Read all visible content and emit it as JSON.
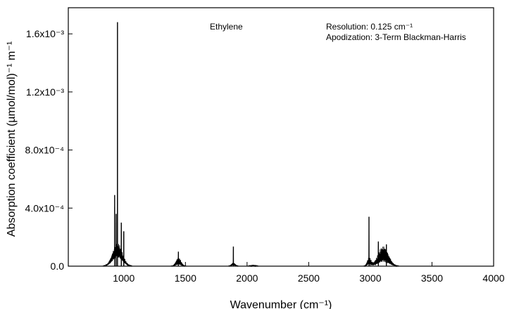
{
  "chart_data": {
    "type": "line",
    "title": "",
    "xlabel": "Wavenumber (cm⁻¹)",
    "ylabel": "Absorption coefficient (µmol/mol)⁻¹ m⁻¹",
    "xlim": [
      550,
      4000
    ],
    "ylim": [
      0,
      0.00178
    ],
    "grid": false,
    "legend": "none",
    "x_ticks": [
      1000,
      1500,
      2000,
      2500,
      3000,
      3500,
      4000
    ],
    "x_tick_labels": [
      "1000",
      "1500",
      "2000",
      "2500",
      "3000",
      "3500",
      "4000"
    ],
    "y_ticks": [
      0,
      0.0004,
      0.0008,
      0.0012,
      0.0016
    ],
    "y_tick_labels": [
      "0.0",
      "4.0x10⁻⁴",
      "8.0x10⁻⁴",
      "1.2x10⁻³",
      "1.6x10⁻³"
    ],
    "annotations": [
      {
        "text": "Ethylene"
      },
      {
        "text": "Resolution:   0.125 cm⁻¹"
      },
      {
        "text": "Apodization: 3-Term Blackman-Harris"
      }
    ],
    "series": [
      {
        "color": "#000000",
        "bands": [
          {
            "center": 949,
            "width": 75,
            "envelope": 0.00016,
            "floor": 6e-05
          },
          {
            "center": 1444,
            "width": 40,
            "envelope": 6e-05,
            "floor": 1e-05
          },
          {
            "center": 1889,
            "width": 30,
            "envelope": 2.5e-05,
            "floor": 5e-06
          },
          {
            "center": 2050,
            "width": 40,
            "envelope": 8e-06,
            "floor": 1e-06
          },
          {
            "center": 2990,
            "width": 30,
            "envelope": 6e-05,
            "floor": 1e-05
          },
          {
            "center": 3105,
            "width": 80,
            "envelope": 0.00014,
            "floor": 3e-05
          }
        ],
        "peaks": [
          {
            "x": 949,
            "y": 0.00168
          },
          {
            "x": 926,
            "y": 0.00049
          },
          {
            "x": 938,
            "y": 0.00036
          },
          {
            "x": 980,
            "y": 0.0003
          },
          {
            "x": 1000,
            "y": 0.00024
          },
          {
            "x": 1443,
            "y": 0.0001
          },
          {
            "x": 1889,
            "y": 0.000135
          },
          {
            "x": 2989,
            "y": 0.00034
          },
          {
            "x": 3065,
            "y": 0.00017
          },
          {
            "x": 3130,
            "y": 0.00015
          }
        ]
      }
    ]
  }
}
